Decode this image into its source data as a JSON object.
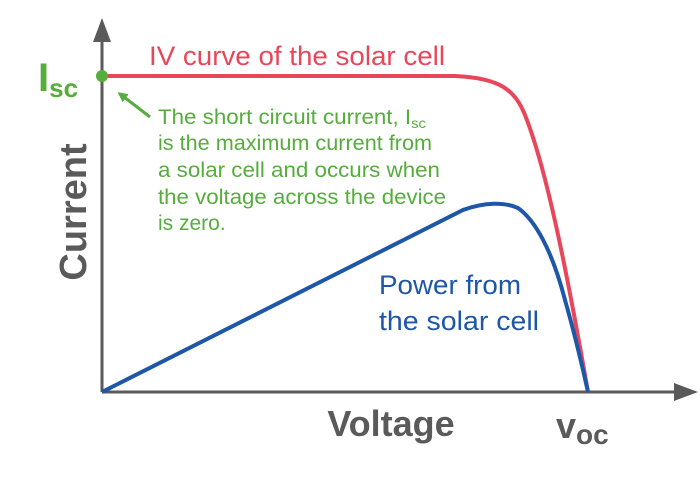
{
  "axes": {
    "y_label": "Current",
    "x_label": "Voltage",
    "axis_color": "#5a5a5a"
  },
  "isc_marker": {
    "main": "I",
    "subscript": "sc",
    "color": "#55ad3c"
  },
  "voc_marker": {
    "main": "v",
    "subscript": "oc",
    "color": "#5a5a5a"
  },
  "iv_curve": {
    "label": "IV curve of the solar cell",
    "color": "#e8475b"
  },
  "power_curve": {
    "label_line1": "Power from",
    "label_line2": "the solar cell",
    "color": "#1e56a8"
  },
  "annotation": {
    "line1_prefix": "The short circuit current, I",
    "line1_sub": "sc",
    "line2": "is the maximum current from",
    "line3": "a solar cell and occurs when",
    "line4": "the voltage across the device",
    "line5": "is zero.",
    "color": "#55ad3c"
  }
}
